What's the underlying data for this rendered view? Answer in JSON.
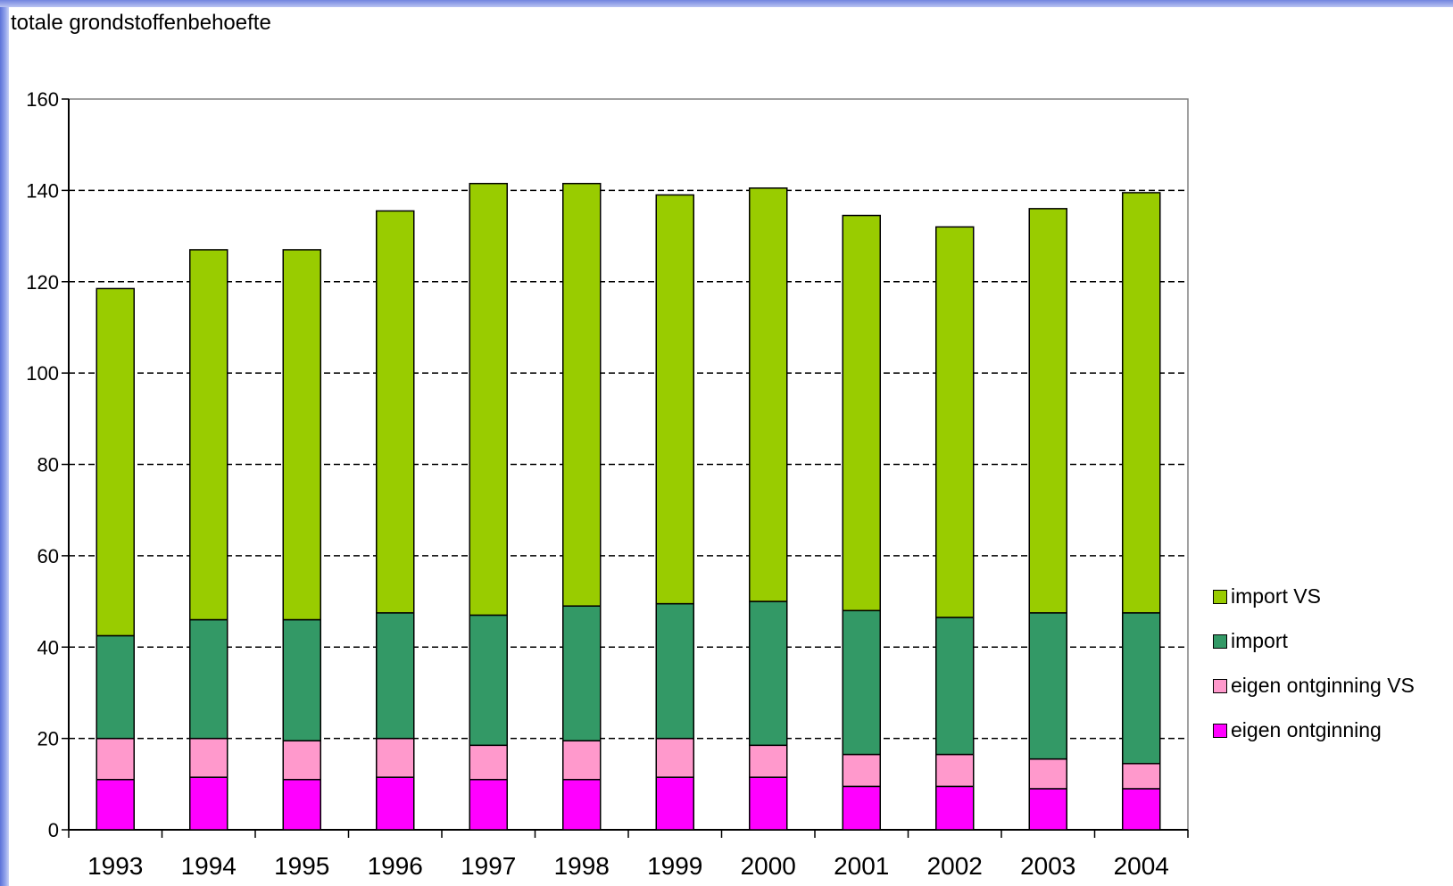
{
  "chart_data": {
    "type": "bar",
    "stacked": true,
    "title": "totale grondstoffenbehoefte",
    "xlabel": "",
    "ylabel": "",
    "ylim": [
      0,
      160
    ],
    "yticks": [
      0,
      20,
      40,
      60,
      80,
      100,
      120,
      140,
      160
    ],
    "grid": "horizontal dashed",
    "legend_position": "right",
    "categories": [
      "1993",
      "1994",
      "1995",
      "1996",
      "1997",
      "1998",
      "1999",
      "2000",
      "2001",
      "2002",
      "2003",
      "2004"
    ],
    "series": [
      {
        "name": "eigen ontginning",
        "color": "#ff00ff",
        "values": [
          11,
          11.5,
          11,
          11.5,
          11,
          11,
          11.5,
          11.5,
          9.5,
          9.5,
          9,
          9
        ]
      },
      {
        "name": "eigen ontginning VS",
        "color": "#ff99cc",
        "values": [
          9,
          8.5,
          8.5,
          8.5,
          7.5,
          8.5,
          8.5,
          7,
          7,
          7,
          6.5,
          5.5
        ]
      },
      {
        "name": "import",
        "color": "#339966",
        "values": [
          22.5,
          26,
          26.5,
          27.5,
          28.5,
          29.5,
          29.5,
          31.5,
          31.5,
          30,
          32,
          33
        ]
      },
      {
        "name": "import VS",
        "color": "#99cc00",
        "values": [
          76,
          81,
          81,
          88,
          94.5,
          92.5,
          89.5,
          90.5,
          86.5,
          85.5,
          88.5,
          92
        ]
      }
    ]
  },
  "legend": {
    "items": [
      {
        "label": "import VS",
        "color": "#99cc00"
      },
      {
        "label": "import",
        "color": "#339966"
      },
      {
        "label": "eigen ontginning VS",
        "color": "#ff99cc"
      },
      {
        "label": "eigen ontginning",
        "color": "#ff00ff"
      }
    ]
  }
}
